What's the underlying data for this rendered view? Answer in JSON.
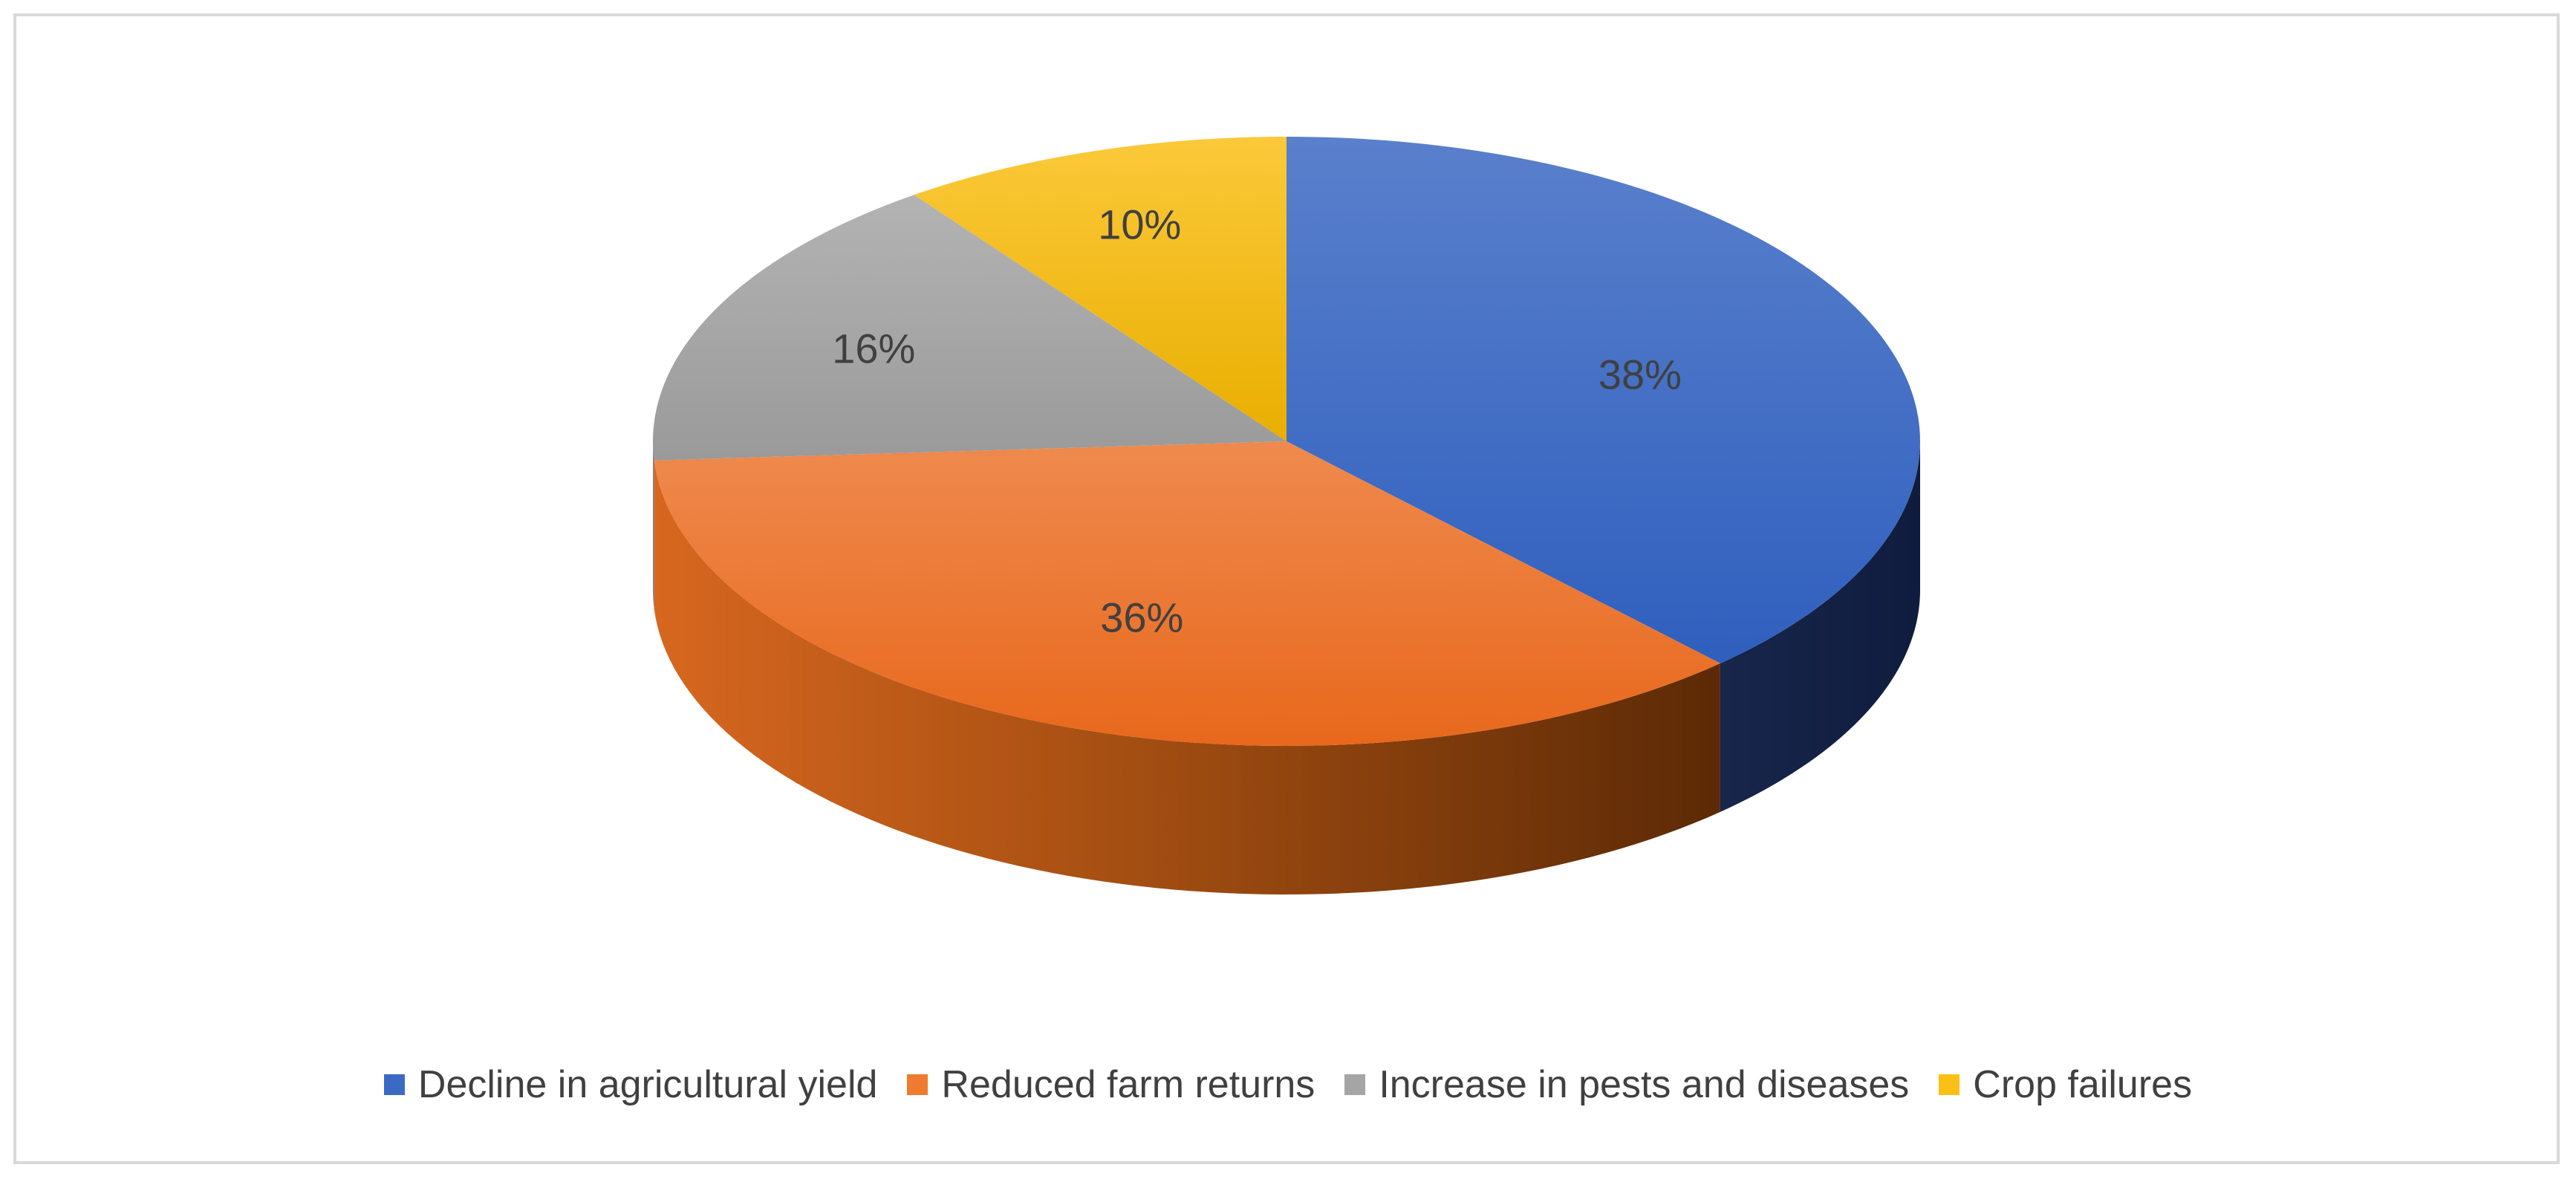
{
  "chart_data": {
    "type": "pie",
    "style": "3d",
    "title": "",
    "categories": [
      "Decline in agricultural yield",
      "Reduced farm returns",
      "Increase in pests and diseases",
      "Crop failures"
    ],
    "values": [
      38,
      36,
      16,
      10
    ],
    "labels": [
      "38%",
      "36%",
      "16%",
      "10%"
    ],
    "colors": [
      "#3a6ac4",
      "#ee7b2e",
      "#a5a5a5",
      "#fcbf16"
    ],
    "legend_position": "bottom"
  }
}
